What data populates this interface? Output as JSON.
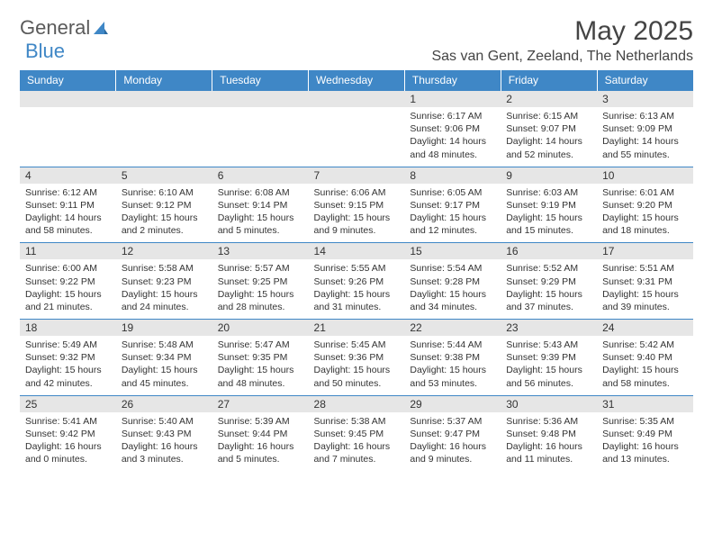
{
  "brand": {
    "part1": "General",
    "part2": "Blue"
  },
  "title": "May 2025",
  "location": "Sas van Gent, Zeeland, The Netherlands",
  "colors": {
    "header_blue": "#3f87c6",
    "grey_row": "#e6e6e6",
    "text": "#333333",
    "white": "#ffffff"
  },
  "weekday_labels": [
    "Sunday",
    "Monday",
    "Tuesday",
    "Wednesday",
    "Thursday",
    "Friday",
    "Saturday"
  ],
  "weeks": [
    {
      "nums": [
        "",
        "",
        "",
        "",
        "1",
        "2",
        "3"
      ],
      "cells": [
        null,
        null,
        null,
        null,
        {
          "sr": "6:17 AM",
          "ss": "9:06 PM",
          "dl": "14 hours and 48 minutes."
        },
        {
          "sr": "6:15 AM",
          "ss": "9:07 PM",
          "dl": "14 hours and 52 minutes."
        },
        {
          "sr": "6:13 AM",
          "ss": "9:09 PM",
          "dl": "14 hours and 55 minutes."
        }
      ]
    },
    {
      "nums": [
        "4",
        "5",
        "6",
        "7",
        "8",
        "9",
        "10"
      ],
      "cells": [
        {
          "sr": "6:12 AM",
          "ss": "9:11 PM",
          "dl": "14 hours and 58 minutes."
        },
        {
          "sr": "6:10 AM",
          "ss": "9:12 PM",
          "dl": "15 hours and 2 minutes."
        },
        {
          "sr": "6:08 AM",
          "ss": "9:14 PM",
          "dl": "15 hours and 5 minutes."
        },
        {
          "sr": "6:06 AM",
          "ss": "9:15 PM",
          "dl": "15 hours and 9 minutes."
        },
        {
          "sr": "6:05 AM",
          "ss": "9:17 PM",
          "dl": "15 hours and 12 minutes."
        },
        {
          "sr": "6:03 AM",
          "ss": "9:19 PM",
          "dl": "15 hours and 15 minutes."
        },
        {
          "sr": "6:01 AM",
          "ss": "9:20 PM",
          "dl": "15 hours and 18 minutes."
        }
      ]
    },
    {
      "nums": [
        "11",
        "12",
        "13",
        "14",
        "15",
        "16",
        "17"
      ],
      "cells": [
        {
          "sr": "6:00 AM",
          "ss": "9:22 PM",
          "dl": "15 hours and 21 minutes."
        },
        {
          "sr": "5:58 AM",
          "ss": "9:23 PM",
          "dl": "15 hours and 24 minutes."
        },
        {
          "sr": "5:57 AM",
          "ss": "9:25 PM",
          "dl": "15 hours and 28 minutes."
        },
        {
          "sr": "5:55 AM",
          "ss": "9:26 PM",
          "dl": "15 hours and 31 minutes."
        },
        {
          "sr": "5:54 AM",
          "ss": "9:28 PM",
          "dl": "15 hours and 34 minutes."
        },
        {
          "sr": "5:52 AM",
          "ss": "9:29 PM",
          "dl": "15 hours and 37 minutes."
        },
        {
          "sr": "5:51 AM",
          "ss": "9:31 PM",
          "dl": "15 hours and 39 minutes."
        }
      ]
    },
    {
      "nums": [
        "18",
        "19",
        "20",
        "21",
        "22",
        "23",
        "24"
      ],
      "cells": [
        {
          "sr": "5:49 AM",
          "ss": "9:32 PM",
          "dl": "15 hours and 42 minutes."
        },
        {
          "sr": "5:48 AM",
          "ss": "9:34 PM",
          "dl": "15 hours and 45 minutes."
        },
        {
          "sr": "5:47 AM",
          "ss": "9:35 PM",
          "dl": "15 hours and 48 minutes."
        },
        {
          "sr": "5:45 AM",
          "ss": "9:36 PM",
          "dl": "15 hours and 50 minutes."
        },
        {
          "sr": "5:44 AM",
          "ss": "9:38 PM",
          "dl": "15 hours and 53 minutes."
        },
        {
          "sr": "5:43 AM",
          "ss": "9:39 PM",
          "dl": "15 hours and 56 minutes."
        },
        {
          "sr": "5:42 AM",
          "ss": "9:40 PM",
          "dl": "15 hours and 58 minutes."
        }
      ]
    },
    {
      "nums": [
        "25",
        "26",
        "27",
        "28",
        "29",
        "30",
        "31"
      ],
      "cells": [
        {
          "sr": "5:41 AM",
          "ss": "9:42 PM",
          "dl": "16 hours and 0 minutes."
        },
        {
          "sr": "5:40 AM",
          "ss": "9:43 PM",
          "dl": "16 hours and 3 minutes."
        },
        {
          "sr": "5:39 AM",
          "ss": "9:44 PM",
          "dl": "16 hours and 5 minutes."
        },
        {
          "sr": "5:38 AM",
          "ss": "9:45 PM",
          "dl": "16 hours and 7 minutes."
        },
        {
          "sr": "5:37 AM",
          "ss": "9:47 PM",
          "dl": "16 hours and 9 minutes."
        },
        {
          "sr": "5:36 AM",
          "ss": "9:48 PM",
          "dl": "16 hours and 11 minutes."
        },
        {
          "sr": "5:35 AM",
          "ss": "9:49 PM",
          "dl": "16 hours and 13 minutes."
        }
      ]
    }
  ],
  "labels": {
    "sunrise": "Sunrise:",
    "sunset": "Sunset:",
    "daylight": "Daylight:"
  }
}
